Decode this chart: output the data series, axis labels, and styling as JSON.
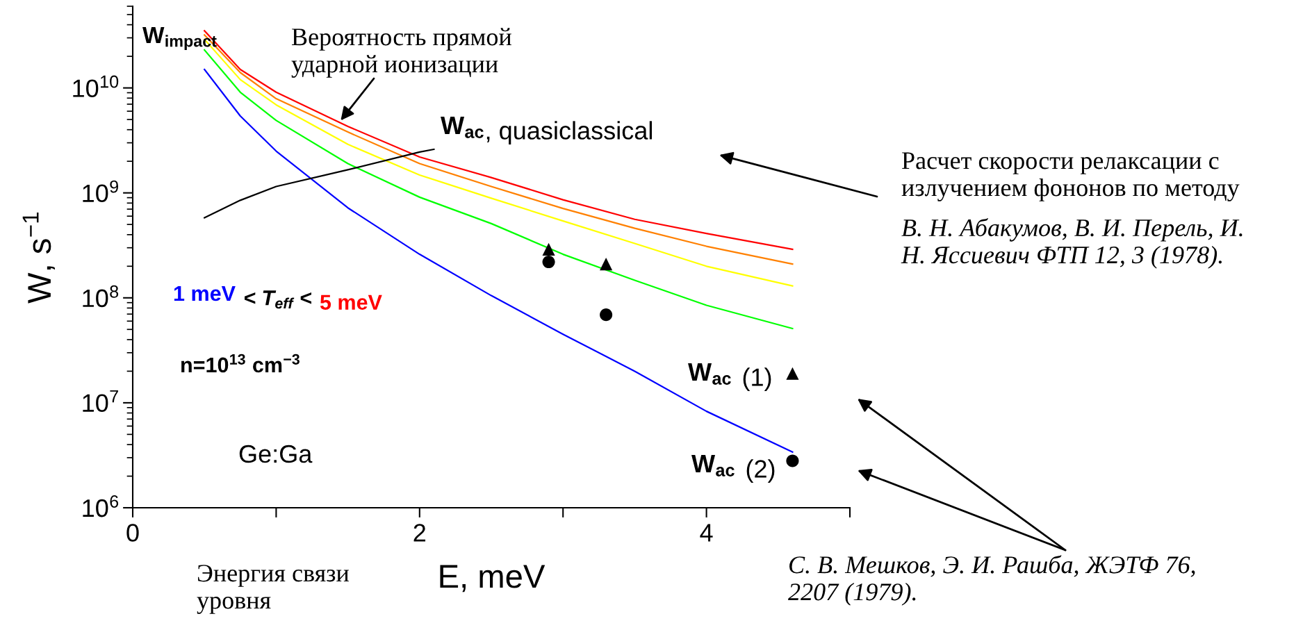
{
  "chart_data": {
    "type": "line",
    "xlabel": "E, meV",
    "ylabel": "W, s$^{−1}$",
    "log": "y",
    "grid": false,
    "xlim": [
      0,
      5
    ],
    "xticks": [
      0,
      {
        "value": 1,
        "label": null
      },
      2,
      {
        "value": 3,
        "label": null
      },
      4,
      {
        "value": 5,
        "label": null
      }
    ],
    "ylim": [
      1000000,
      60000000000
    ],
    "yticks": [
      {
        "value": 1000000,
        "label": "10$^{6}$"
      },
      {
        "value": 10000000,
        "label": "10$^{7}$"
      },
      {
        "value": 100000000,
        "label": "10$^{8}$"
      },
      {
        "value": 1000000000,
        "label": "10$^{9}$"
      },
      {
        "value": 10000000000,
        "label": "10$^{10}$"
      }
    ],
    "series": [
      {
        "color": "#ff0000",
        "marker": "none",
        "x": [
          0.5,
          0.75,
          1,
          1.5,
          2,
          2.5,
          3,
          3.5,
          4,
          4.6
        ],
        "values": [
          35000000000.0,
          15000000000.0,
          9100000000.0,
          4300000000.0,
          2200000000.0,
          1400000000.0,
          860000000.0,
          560000000.0,
          410000000.0,
          290000000.0
        ]
      },
      {
        "color": "#ff8000",
        "marker": "none",
        "x": [
          0.5,
          0.75,
          1,
          1.5,
          2,
          2.5,
          3,
          3.5,
          4,
          4.6
        ],
        "values": [
          32000000000.0,
          14000000000.0,
          7900000000.0,
          3800000000.0,
          1900000000.0,
          1150000000.0,
          710000000.0,
          460000000.0,
          310000000.0,
          210000000.0
        ]
      },
      {
        "color": "#ffff00",
        "marker": "none",
        "x": [
          0.5,
          0.75,
          1,
          1.5,
          2,
          2.5,
          3,
          3.5,
          4,
          4.6
        ],
        "values": [
          29000000000.0,
          12000000000.0,
          6900000000.0,
          2900000000.0,
          1480000000.0,
          890000000.0,
          540000000.0,
          330000000.0,
          200000000.0,
          130000000.0
        ]
      },
      {
        "color": "#00ff00",
        "marker": "none",
        "x": [
          0.5,
          0.75,
          1,
          1.5,
          2,
          2.5,
          3,
          3.5,
          4,
          4.6
        ],
        "values": [
          23000000000.0,
          9100000000.0,
          4900000000.0,
          1900000000.0,
          910000000.0,
          510000000.0,
          260000000.0,
          147000000.0,
          85000000.0,
          51000000.0
        ]
      },
      {
        "color": "#0000ff",
        "marker": "none",
        "x": [
          0.5,
          0.75,
          1,
          1.5,
          2,
          2.5,
          3,
          3.5,
          4,
          4.6
        ],
        "values": [
          15000000000.0,
          5400000000.0,
          2500000000.0,
          720000000.0,
          260000000.0,
          105000000.0,
          45000000.0,
          20000000.0,
          8300000.0,
          3400000.0
        ]
      },
      {
        "color": "#000000",
        "marker": "none",
        "x": [
          0.5,
          0.75,
          1,
          1.5,
          2,
          2.1
        ],
        "values": [
          580000000.0,
          850000000.0,
          1150000000.0,
          1660000000.0,
          2450000000.0,
          2600000000.0
        ]
      },
      {
        "type": "scatter",
        "color": "#000000",
        "marker": "triangle",
        "x": [
          2.9,
          3.3,
          4.6
        ],
        "values": [
          290000000.0,
          210000000.0,
          19000000.0
        ]
      },
      {
        "type": "scatter",
        "color": "#000000",
        "marker": "circle",
        "x": [
          2.9,
          3.3,
          4.6
        ],
        "values": [
          220000000.0,
          69000000.0,
          2800000.0
        ]
      }
    ],
    "annotations": [
      "W$_{impact}$",
      {
        "text": "Вероятность прямой\nударной ионизации",
        "x": 1.45,
        "y": 4900000000.0
      },
      "W$_{ac}$",
      ", quasiclassical",
      "1 meV",
      "< T$_{eff}$ <",
      "5 meV",
      "n=10$^{13}$ cm$^{−3}$",
      "Ge:Ga",
      "W$_{ac}$",
      "(1)",
      "W$_{ac}$",
      "(2)",
      "Расчет скорости релаксации с\nизлучением фононов по методу",
      "В. Н. Абакумов, В. И. Перель, И.\nН. Яссиевич ФТП 12, 3 (1978).",
      "С. В. Мешков, Э. И. Рашба, ЖЭТФ 76,\n2207 (1979).",
      "Энергия связи\nуровня"
    ]
  }
}
